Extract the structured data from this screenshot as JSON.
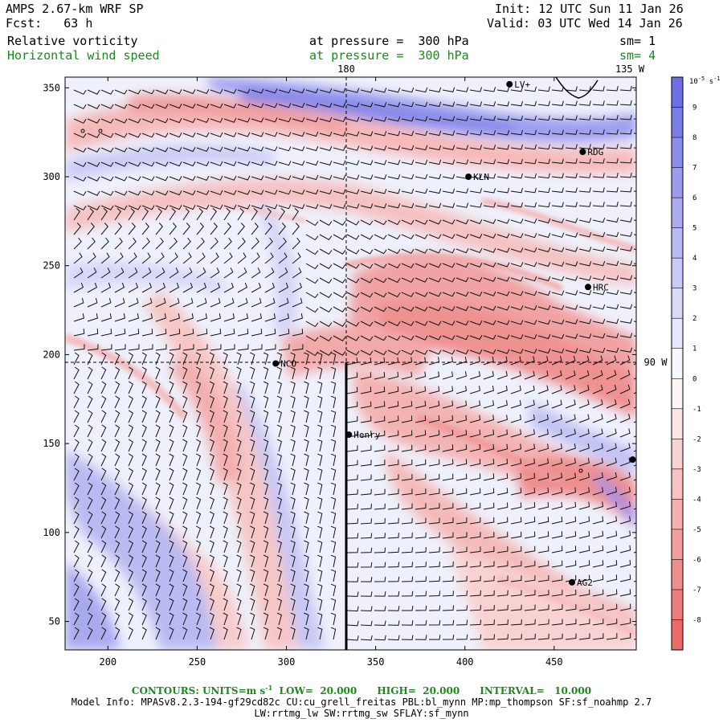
{
  "header": {
    "model": "AMPS 2.67-km WRF SP",
    "forecast": "Fcst:   63 h",
    "init": "Init: 12 UTC Sun 11 Jan 26",
    "valid": "Valid: 03 UTC Wed 14 Jan 26",
    "field1": "Relative vorticity",
    "field1_level": "at pressure =  300 hPa",
    "field1_sm": "sm= 1",
    "field2": "Horizontal wind speed",
    "field2_level": "at pressure =  300 hPa",
    "field2_sm": "sm= 4"
  },
  "map_labels": {
    "lon_180": "180",
    "lon_135w": "135 W",
    "lon_90w": "90 W"
  },
  "stations": [
    {
      "name": "LV+",
      "x": 425,
      "y": 352
    },
    {
      "name": "RDG",
      "x": 466,
      "y": 314
    },
    {
      "name": "KLN",
      "x": 402,
      "y": 300
    },
    {
      "name": "HRC",
      "x": 469,
      "y": 238
    },
    {
      "name": "NCO",
      "x": 294,
      "y": 195
    },
    {
      "name": "Henry",
      "x": 335,
      "y": 155
    },
    {
      "name": "AG2",
      "x": 460,
      "y": 72
    },
    {
      "name": "",
      "x": 494,
      "y": 141
    }
  ],
  "axes": {
    "x_ticks": [
      "200",
      "250",
      "300",
      "350",
      "400",
      "450"
    ],
    "y_ticks": [
      "50",
      "100",
      "150",
      "200",
      "250",
      "300",
      "350"
    ],
    "x_values": [
      200,
      250,
      300,
      350,
      400,
      450
    ],
    "y_values": [
      50,
      100,
      150,
      200,
      250,
      300,
      350
    ],
    "xlim": [
      176,
      496
    ],
    "ylim": [
      34,
      356
    ]
  },
  "colorbar": {
    "unit": "10^-5 s^-1",
    "unit_base": "10",
    "unit_exp": "-5",
    "unit_suffix": "s",
    "unit_suffix_exp": "-1",
    "labels": [
      "9",
      "8",
      "7",
      "6",
      "5",
      "4",
      "3",
      "2",
      "1",
      "0",
      "-1",
      "-2",
      "-3",
      "-4",
      "-5",
      "-6",
      "-7",
      "-8"
    ],
    "positive_color": "#6e6ee6",
    "negative_color": "#ec6a6a"
  },
  "footer": {
    "contours_prefix": "CONTOURS:  UNITS=m s",
    "contours_exp": "-1",
    "contours_suffix": "  LOW=  20.000      HIGH=  20.000      INTERVAL=   10.000",
    "model_info": "Model Info: MPASv8.2.3-194-gf29cd82c CU:cu_grell_freitas PBL:bl_mynn MP:mp_thompson SF:sf_noahmp 2.7",
    "model_info2": "LW:rrtmg_lw SW:rrtmg_sw SFLAY:sf_mynn"
  }
}
